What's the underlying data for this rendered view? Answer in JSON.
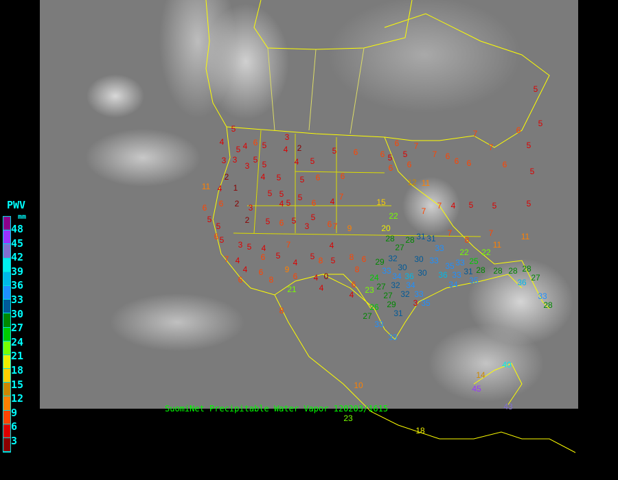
{
  "legend": {
    "title": "PWV",
    "unit": "mm",
    "labels": [
      "48",
      "45",
      "42",
      "39",
      "36",
      "33",
      "30",
      "27",
      "24",
      "21",
      "18",
      "15",
      "12",
      "9",
      "6",
      "3"
    ],
    "colors": [
      "#8b008b",
      "#9933ff",
      "#8070d0",
      "#00eeee",
      "#00b8e8",
      "#1e90ff",
      "#005a99",
      "#008800",
      "#00cc00",
      "#77ff00",
      "#eeee00",
      "#ffd000",
      "#cc8800",
      "#ff8000",
      "#ff4400",
      "#dd0000",
      "#8b0000"
    ]
  },
  "caption": "SuomiNet Precipitable Water Vapor 120203/1615",
  "stations": [
    "5",
    "4",
    "5",
    "4",
    "6",
    "5",
    "3",
    "2",
    "4",
    "3",
    "3",
    "5",
    "5",
    "4",
    "5",
    "5",
    "6",
    "6",
    "5",
    "6",
    "5",
    "6",
    "7",
    "7",
    "6",
    "6",
    "6",
    "7",
    "7",
    "6",
    "6",
    "5",
    "5",
    "5",
    "5",
    "2",
    "3",
    "4",
    "5",
    "5",
    "6",
    "6",
    "6",
    "12",
    "11",
    "11",
    "4",
    "1",
    "5",
    "5",
    "5",
    "5",
    "6",
    "4",
    "7",
    "15",
    "6",
    "6",
    "2",
    "3",
    "4",
    "5",
    "7",
    "9",
    "22",
    "7",
    "7",
    "4",
    "5",
    "5",
    "5",
    "5",
    "5",
    "2",
    "5",
    "6",
    "5",
    "3",
    "6",
    "20",
    "28",
    "31",
    "31",
    "7",
    "8",
    "7",
    "11",
    "6",
    "5",
    "3",
    "5",
    "4",
    "7",
    "4",
    "28",
    "27",
    "22",
    "25",
    "22",
    "11",
    "7",
    "4",
    "6",
    "5",
    "4",
    "5",
    "8",
    "5",
    "8",
    "6",
    "29",
    "32",
    "30",
    "30",
    "33",
    "33",
    "35",
    "33",
    "31",
    "28",
    "28",
    "28",
    "28",
    "4",
    "6",
    "9",
    "8",
    "33",
    "34",
    "36",
    "30",
    "36",
    "33",
    "35",
    "36",
    "27",
    "6",
    "8",
    "6",
    "4",
    "0",
    "6",
    "24",
    "27",
    "32",
    "34",
    "23",
    "27",
    "32",
    "33",
    "35",
    "34",
    "33",
    "28",
    "21",
    "4",
    "4",
    "26",
    "27",
    "29",
    "3",
    "31",
    "8",
    "33",
    "33",
    "10",
    "14",
    "40",
    "45",
    "43",
    "18",
    "23"
  ]
}
